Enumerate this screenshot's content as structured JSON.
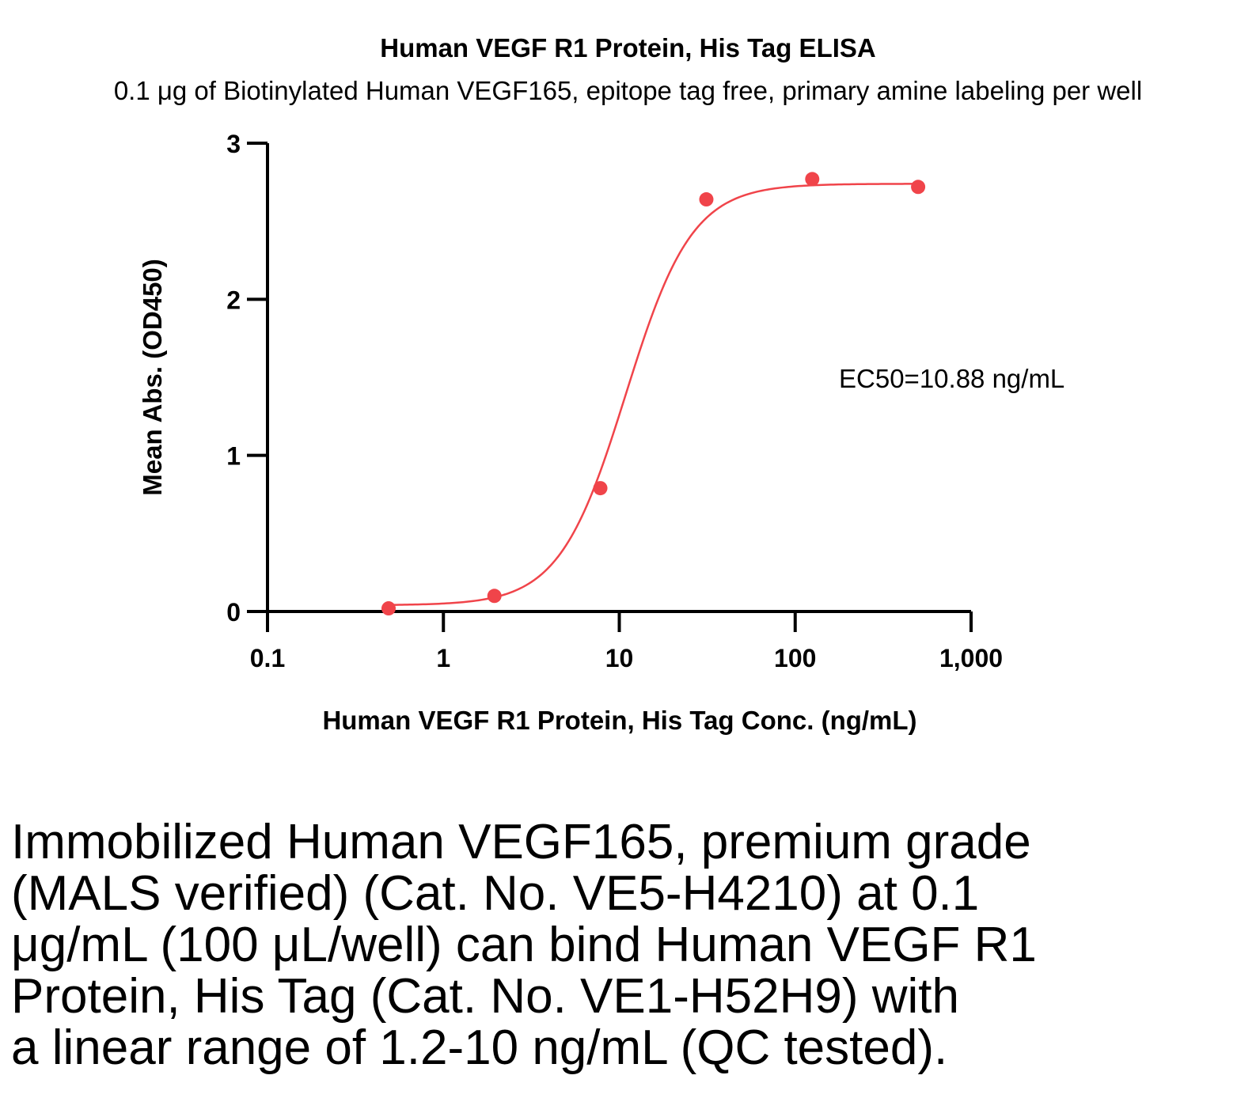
{
  "chart_data": {
    "type": "scatter",
    "title": "Human VEGF R1 Protein, His Tag ELISA",
    "subtitle": "0.1 μg of Biotinylated Human VEGF165, epitope tag free, primary amine labeling per well",
    "xlabel": "Human VEGF R1 Protein, His Tag Conc. (ng/mL)",
    "ylabel": "Mean Abs. (OD450)",
    "x_scale": "log",
    "xlim": [
      0.1,
      1000
    ],
    "ylim": [
      0,
      3
    ],
    "x_ticks": [
      0.1,
      1,
      10,
      100,
      1000
    ],
    "x_tick_labels": [
      "0.1",
      "1",
      "10",
      "100",
      "1,000"
    ],
    "y_ticks": [
      0,
      1,
      2,
      3
    ],
    "y_tick_labels": [
      "0",
      "1",
      "2",
      "3"
    ],
    "series": [
      {
        "color": "#f0444a",
        "x": [
          0.488,
          1.95,
          7.8,
          31.25,
          125,
          500
        ],
        "y": [
          0.02,
          0.1,
          0.79,
          2.64,
          2.77,
          2.72
        ]
      }
    ],
    "fit": {
      "model": "4PL",
      "bottom": 0.04,
      "top": 2.74,
      "ec50": 10.88,
      "hill": 2.3
    },
    "annotation": "EC50=10.88 ng/mL",
    "grid": false,
    "legend": "none"
  },
  "caption": [
    "Immobilized Human VEGF165, premium grade",
    "(MALS verified) (Cat. No. VE5-H4210) at 0.1",
    "μg/mL (100 μL/well) can bind Human VEGF R1",
    "Protein, His Tag (Cat. No. VE1-H52H9) with",
    "a linear range of 1.2-10 ng/mL (QC tested)."
  ]
}
